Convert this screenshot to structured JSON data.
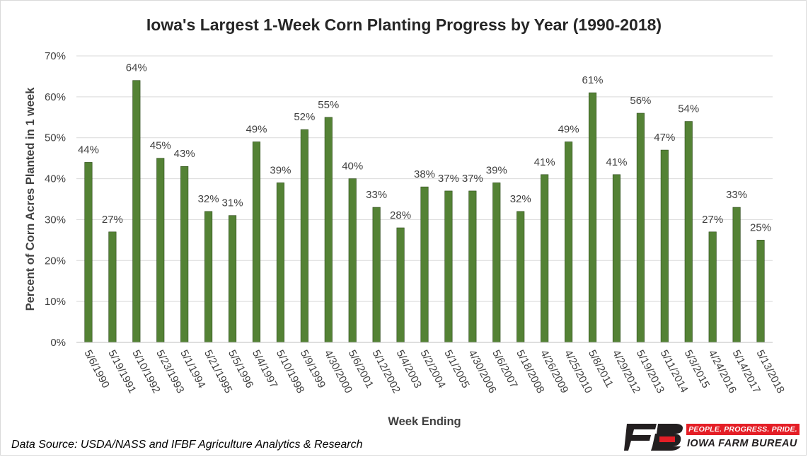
{
  "title": "Iowa's Largest 1-Week Corn Planting Progress by Year (1990-2018)",
  "source_note": "Data Source: USDA/NASS and IFBF Agriculture Analytics & Research",
  "logo": {
    "slogan": "PEOPLE. PROGRESS. PRIDE.",
    "brand": "IOWA FARM BUREAU",
    "mark": "FB"
  },
  "colors": {
    "bar": "#548235",
    "bar_stroke": "#2e4a1c",
    "grid": "#d9d9d9",
    "text": "#404040",
    "logo_red": "#e41e26",
    "logo_black": "#231f20"
  },
  "chart_data": {
    "type": "bar",
    "title": "Iowa's Largest 1-Week Corn Planting Progress by Year (1990-2018)",
    "xlabel": "Week Ending",
    "ylabel": "Percent of Corn Acres Planted in 1 week",
    "ylim": [
      0,
      70
    ],
    "yticks": [
      0,
      10,
      20,
      30,
      40,
      50,
      60,
      70
    ],
    "ytick_format": "percent",
    "grid": "horizontal",
    "legend": "none",
    "categories": [
      "5/6/1990",
      "5/19/1991",
      "5/10/1992",
      "5/23/1993",
      "5/1/1994",
      "5/21/1995",
      "5/5/1996",
      "5/4/1997",
      "5/10/1998",
      "5/9/1999",
      "4/30/2000",
      "5/6/2001",
      "5/12/2002",
      "5/4/2003",
      "5/2/2004",
      "5/1/2005",
      "4/30/2006",
      "5/6/2007",
      "5/18/2008",
      "4/26/2009",
      "4/25/2010",
      "5/8/2011",
      "4/29/2012",
      "5/19/2013",
      "5/11/2014",
      "5/3/2015",
      "4/24/2016",
      "5/14/2017",
      "5/13/2018"
    ],
    "values": [
      44,
      27,
      64,
      45,
      43,
      32,
      31,
      49,
      39,
      52,
      55,
      40,
      33,
      28,
      38,
      37,
      37,
      39,
      32,
      41,
      49,
      61,
      41,
      56,
      47,
      54,
      27,
      33,
      25
    ],
    "data_labels": true
  }
}
